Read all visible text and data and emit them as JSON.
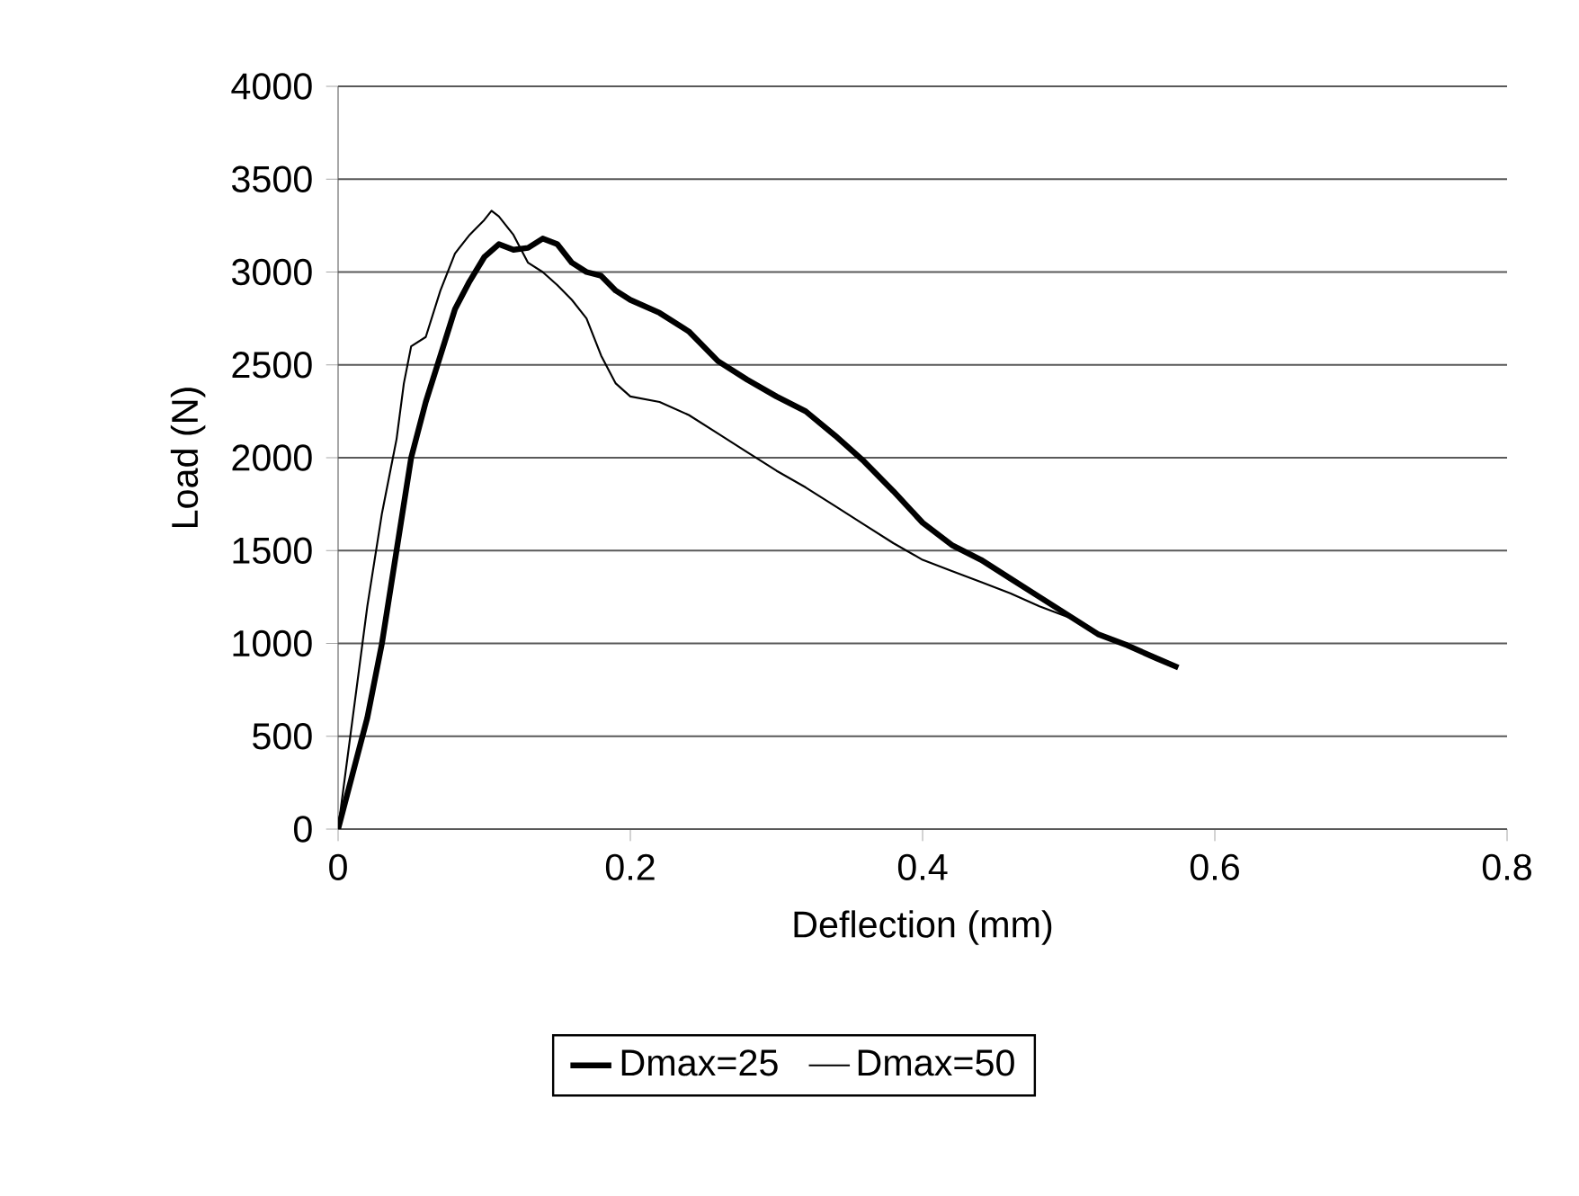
{
  "chart_data": {
    "type": "line",
    "xlabel": "Deflection (mm)",
    "ylabel": "Load (N)",
    "xlim": [
      0,
      0.8
    ],
    "xticks": [
      0,
      0.2,
      0.4,
      0.6,
      0.8
    ],
    "ylim": [
      0,
      4000
    ],
    "yticks": [
      0,
      500,
      1000,
      1500,
      2000,
      2500,
      3000,
      3500,
      4000
    ],
    "grid": "y",
    "legend": "bottom",
    "marker": "none",
    "line_style": "solid",
    "series": [
      {
        "name": "Dmax=25",
        "color": "#000000",
        "x": [
          0,
          0.02,
          0.03,
          0.04,
          0.05,
          0.06,
          0.07,
          0.08,
          0.09,
          0.1,
          0.11,
          0.12,
          0.13,
          0.14,
          0.15,
          0.16,
          0.17,
          0.18,
          0.19,
          0.2,
          0.22,
          0.24,
          0.26,
          0.28,
          0.3,
          0.32,
          0.34,
          0.36,
          0.38,
          0.4,
          0.42,
          0.44,
          0.46,
          0.48,
          0.5,
          0.52,
          0.54,
          0.56,
          0.575
        ],
        "values": [
          0,
          600,
          1000,
          1500,
          2000,
          2300,
          2550,
          2800,
          2950,
          3080,
          3150,
          3120,
          3130,
          3180,
          3150,
          3050,
          3000,
          2980,
          2900,
          2850,
          2780,
          2680,
          2520,
          2420,
          2330,
          2250,
          2120,
          1980,
          1820,
          1650,
          1530,
          1450,
          1350,
          1250,
          1150,
          1050,
          990,
          920,
          870
        ]
      },
      {
        "name": "Dmax=50",
        "color": "#000000",
        "x": [
          0,
          0.01,
          0.02,
          0.03,
          0.04,
          0.045,
          0.05,
          0.06,
          0.07,
          0.08,
          0.09,
          0.1,
          0.105,
          0.11,
          0.12,
          0.13,
          0.14,
          0.15,
          0.16,
          0.17,
          0.18,
          0.19,
          0.2,
          0.22,
          0.24,
          0.26,
          0.28,
          0.3,
          0.32,
          0.34,
          0.36,
          0.38,
          0.4,
          0.42,
          0.44,
          0.46,
          0.48,
          0.5
        ],
        "values": [
          0,
          600,
          1200,
          1700,
          2100,
          2400,
          2600,
          2650,
          2900,
          3100,
          3200,
          3280,
          3330,
          3300,
          3200,
          3050,
          3000,
          2930,
          2850,
          2750,
          2550,
          2400,
          2330,
          2300,
          2230,
          2130,
          2030,
          1930,
          1840,
          1740,
          1640,
          1540,
          1450,
          1390,
          1330,
          1270,
          1200,
          1140
        ]
      }
    ]
  }
}
